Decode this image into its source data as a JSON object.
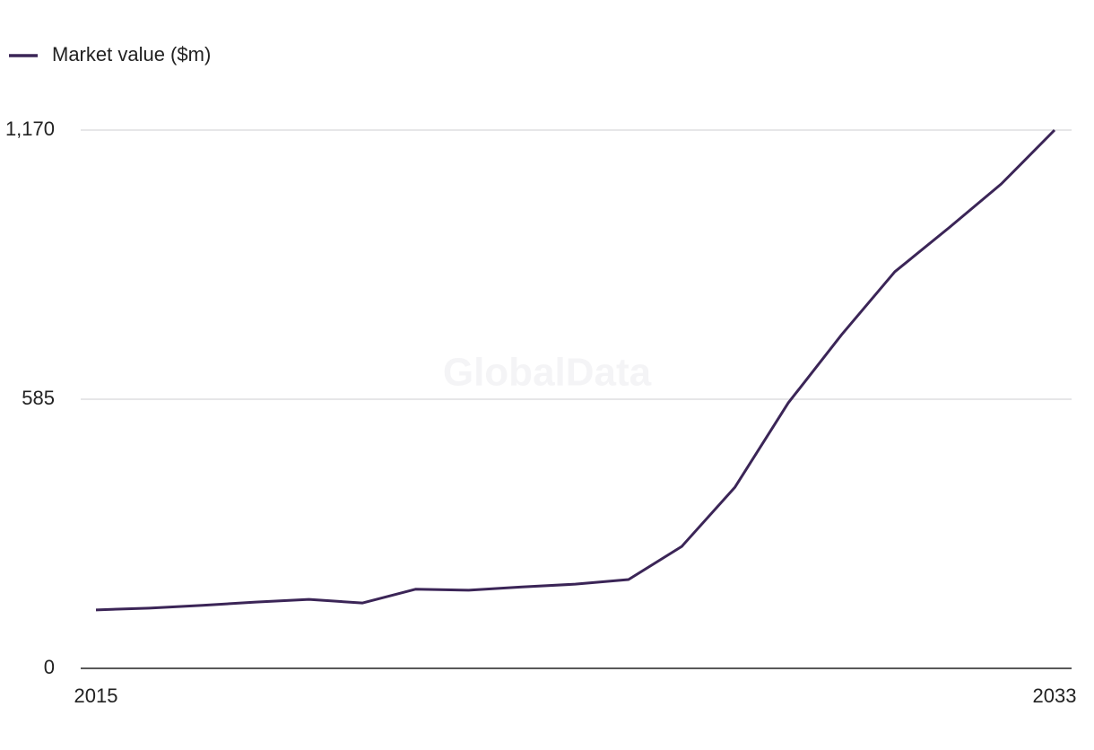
{
  "chart_data": {
    "type": "line",
    "watermark": "GlobalData",
    "x": [
      2015,
      2016,
      2017,
      2018,
      2019,
      2020,
      2021,
      2022,
      2023,
      2024,
      2025,
      2026,
      2027,
      2028,
      2029,
      2030,
      2031,
      2032,
      2033
    ],
    "series": [
      {
        "name": "Market value ($m)",
        "color": "#3b2557",
        "values": [
          127,
          131,
          137,
          144,
          150,
          142,
          172,
          170,
          177,
          183,
          193,
          265,
          394,
          577,
          725,
          862,
          956,
          1053,
          1170
        ]
      }
    ],
    "xlim": [
      2015,
      2033
    ],
    "xticks": [
      2015,
      2033
    ],
    "ylim": [
      0,
      1170
    ],
    "yticks": [
      0,
      585,
      {
        "value": 1170,
        "label": "1,170"
      }
    ],
    "grid": true,
    "legend": "top-left"
  }
}
